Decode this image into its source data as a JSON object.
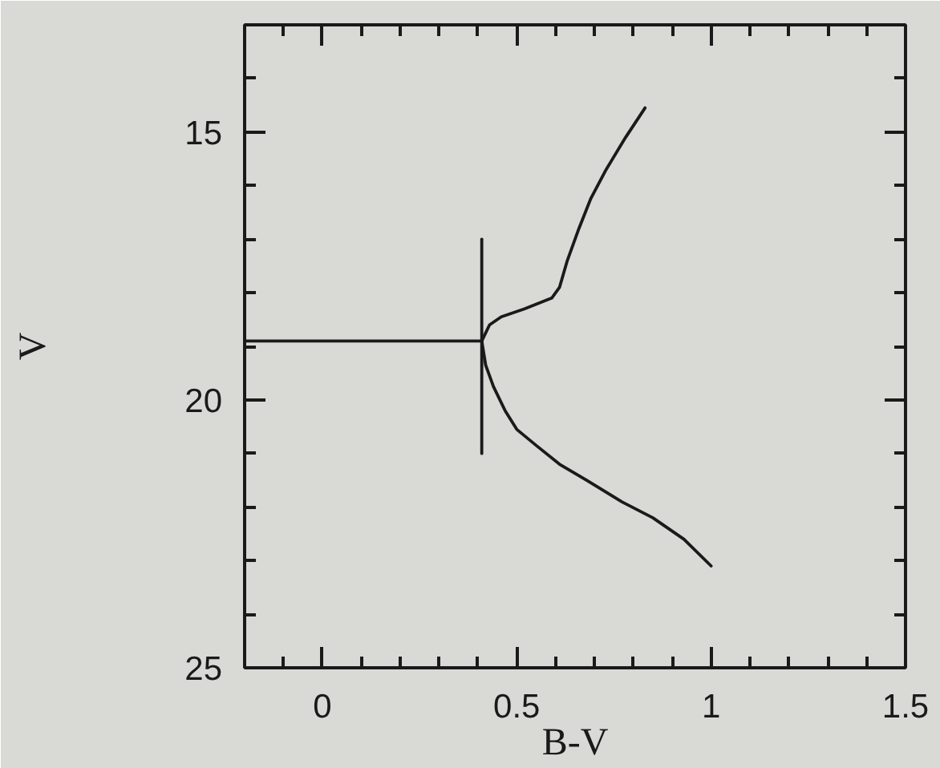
{
  "chart_data": {
    "type": "line",
    "xlabel": "B-V",
    "ylabel": "V",
    "xlim": [
      -0.2,
      1.5
    ],
    "ylim": [
      25,
      13
    ],
    "xticks": [
      {
        "value": -0.1,
        "label": null
      },
      0,
      {
        "value": 0.1,
        "label": null
      },
      {
        "value": 0.2,
        "label": null
      },
      {
        "value": 0.3,
        "label": null
      },
      {
        "value": 0.4,
        "label": null
      },
      0.5,
      {
        "value": 0.6,
        "label": null
      },
      {
        "value": 0.7,
        "label": null
      },
      {
        "value": 0.8,
        "label": null
      },
      {
        "value": 0.9,
        "label": null
      },
      1,
      {
        "value": 1.1,
        "label": null
      },
      {
        "value": 1.2,
        "label": null
      },
      {
        "value": 1.3,
        "label": null
      },
      {
        "value": 1.4,
        "label": null
      },
      1.5
    ],
    "yticks": [
      {
        "value": 13,
        "label": null
      },
      {
        "value": 14,
        "label": null
      },
      15,
      {
        "value": 16,
        "label": null
      },
      {
        "value": 17,
        "label": null
      },
      {
        "value": 18,
        "label": null
      },
      {
        "value": 19,
        "label": null
      },
      20,
      {
        "value": 21,
        "label": null
      },
      {
        "value": 22,
        "label": null
      },
      {
        "value": 23,
        "label": null
      },
      {
        "value": 24,
        "label": null
      },
      25
    ],
    "grid": false,
    "marker": "none",
    "line_style": "solid",
    "series": [
      {
        "color": "#1a1a1a",
        "x": [
          1.0,
          0.93,
          0.85,
          0.77,
          0.68,
          0.61,
          0.55,
          0.5,
          0.47,
          0.44,
          0.42,
          0.41,
          0.43,
          0.46,
          0.52,
          0.59,
          0.61,
          0.63,
          0.66,
          0.69,
          0.73,
          0.78,
          0.83
        ],
        "values": [
          23.1,
          22.6,
          22.2,
          21.9,
          21.5,
          21.2,
          20.85,
          20.55,
          20.2,
          19.75,
          19.35,
          18.9,
          18.6,
          18.45,
          18.3,
          18.1,
          17.9,
          17.4,
          16.8,
          16.25,
          15.7,
          15.1,
          14.55
        ]
      },
      {
        "color": "#1a1a1a",
        "x": [
          -0.2,
          0.41
        ],
        "values": [
          18.9,
          18.9
        ]
      },
      {
        "color": "#1a1a1a",
        "x": [
          0.41,
          0.41
        ],
        "values": [
          17,
          21
        ]
      }
    ]
  }
}
